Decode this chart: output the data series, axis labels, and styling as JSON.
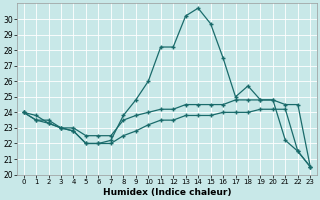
{
  "title": "",
  "xlabel": "Humidex (Indice chaleur)",
  "bg_color": "#c8e8e8",
  "line_color": "#1a6b6b",
  "grid_color": "#ffffff",
  "x_values": [
    0,
    1,
    2,
    3,
    4,
    5,
    6,
    7,
    8,
    9,
    10,
    11,
    12,
    13,
    14,
    15,
    16,
    17,
    18,
    19,
    20,
    21,
    22,
    23
  ],
  "line1": [
    24.0,
    23.8,
    23.3,
    23.0,
    22.8,
    22.0,
    22.0,
    22.2,
    23.8,
    24.8,
    26.0,
    28.2,
    28.2,
    30.2,
    30.7,
    29.7,
    27.5,
    25.0,
    25.7,
    24.8,
    24.8,
    22.2,
    21.5,
    20.5
  ],
  "line2": [
    24.0,
    23.5,
    23.5,
    23.0,
    23.0,
    22.5,
    22.5,
    22.5,
    23.5,
    23.8,
    24.0,
    24.2,
    24.2,
    24.5,
    24.5,
    24.5,
    24.5,
    24.8,
    24.8,
    24.8,
    24.8,
    24.5,
    24.5,
    20.5
  ],
  "line3": [
    24.0,
    23.5,
    23.3,
    23.0,
    22.8,
    22.0,
    22.0,
    22.0,
    22.5,
    22.8,
    23.2,
    23.5,
    23.5,
    23.8,
    23.8,
    23.8,
    24.0,
    24.0,
    24.0,
    24.2,
    24.2,
    24.2,
    21.5,
    20.5
  ],
  "ylim": [
    20,
    31
  ],
  "xlim": [
    -0.5,
    23.5
  ],
  "yticks": [
    20,
    21,
    22,
    23,
    24,
    25,
    26,
    27,
    28,
    29,
    30
  ],
  "xtick_labels": [
    "0",
    "1",
    "2",
    "3",
    "4",
    "5",
    "6",
    "7",
    "8",
    "9",
    "10",
    "11",
    "12",
    "13",
    "14",
    "15",
    "16",
    "17",
    "18",
    "19",
    "20",
    "21",
    "22",
    "23"
  ]
}
